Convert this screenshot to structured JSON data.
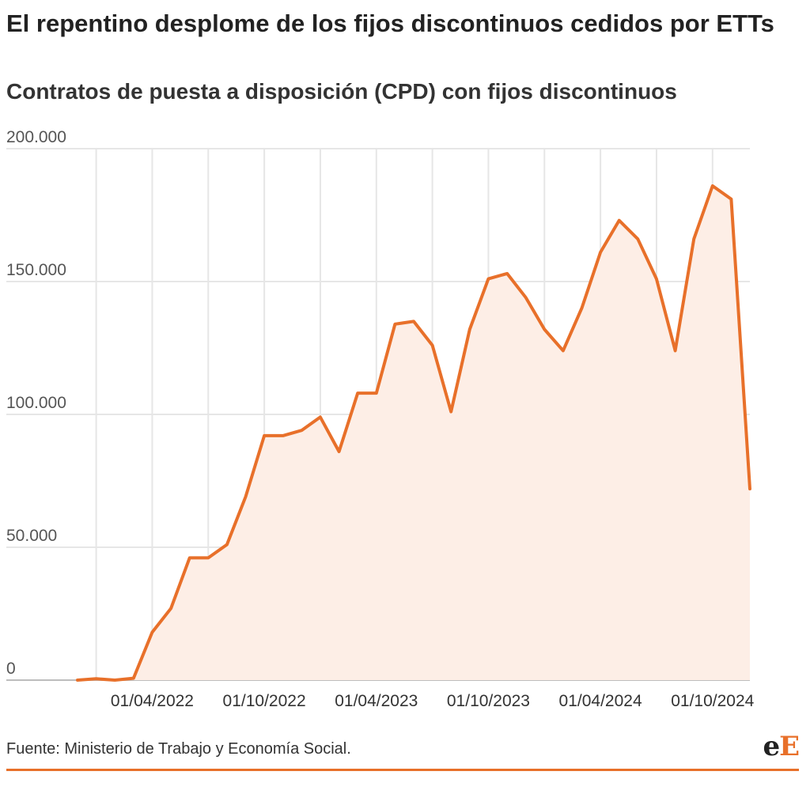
{
  "colors": {
    "line": "#e8702a",
    "area": "#fdeee6",
    "grid": "#e6e6e6",
    "baseline": "#bdbdbd"
  },
  "footer": {
    "source": "Fuente: Ministerio de Trabajo y Economía Social."
  },
  "logo": {
    "part1": "e",
    "part2": "E"
  },
  "chart_data": {
    "type": "area",
    "title": "El repentino desplome de los fijos discontinuos cedidos por ETTs",
    "subtitle": "Contratos de puesta a disposición (CPD) con fijos discontinuos",
    "x": [
      "2021-12",
      "2022-01",
      "2022-02",
      "2022-03",
      "2022-04",
      "2022-05",
      "2022-06",
      "2022-07",
      "2022-08",
      "2022-09",
      "2022-10",
      "2022-11",
      "2022-12",
      "2023-01",
      "2023-02",
      "2023-03",
      "2023-04",
      "2023-05",
      "2023-06",
      "2023-07",
      "2023-08",
      "2023-09",
      "2023-10",
      "2023-11",
      "2023-12",
      "2024-01",
      "2024-02",
      "2024-03",
      "2024-04",
      "2024-05",
      "2024-06",
      "2024-07",
      "2024-08",
      "2024-09",
      "2024-10",
      "2024-11",
      "2024-12"
    ],
    "values": [
      0,
      500,
      0,
      700,
      18000,
      27000,
      46000,
      46000,
      51000,
      69000,
      92000,
      92000,
      94000,
      99000,
      86000,
      108000,
      108000,
      134000,
      135000,
      126000,
      101000,
      132000,
      151000,
      153000,
      144000,
      132000,
      124000,
      140000,
      161000,
      173000,
      166000,
      151000,
      124000,
      166000,
      186000,
      181000,
      72000
    ],
    "xticks": [
      {
        "x": "2022-04",
        "label": "01/04/2022"
      },
      {
        "x": "2022-10",
        "label": "01/10/2022"
      },
      {
        "x": "2023-04",
        "label": "01/04/2023"
      },
      {
        "x": "2023-10",
        "label": "01/10/2023"
      },
      {
        "x": "2024-04",
        "label": "01/04/2024"
      },
      {
        "x": "2024-10",
        "label": "01/10/2024"
      }
    ],
    "xgrid_months": [
      "2022-01",
      "2022-04",
      "2022-07",
      "2022-10",
      "2023-01",
      "2023-04",
      "2023-07",
      "2023-10",
      "2024-01",
      "2024-04",
      "2024-07",
      "2024-10"
    ],
    "yticks": [
      {
        "value": 0,
        "label": "0"
      },
      {
        "value": 50000,
        "label": "50.000"
      },
      {
        "value": 100000,
        "label": "100.000"
      },
      {
        "value": 150000,
        "label": "150.000"
      },
      {
        "value": 200000,
        "label": "200.000"
      }
    ],
    "ylim": [
      0,
      200000
    ],
    "grid": true,
    "xlabel": "",
    "ylabel": ""
  }
}
